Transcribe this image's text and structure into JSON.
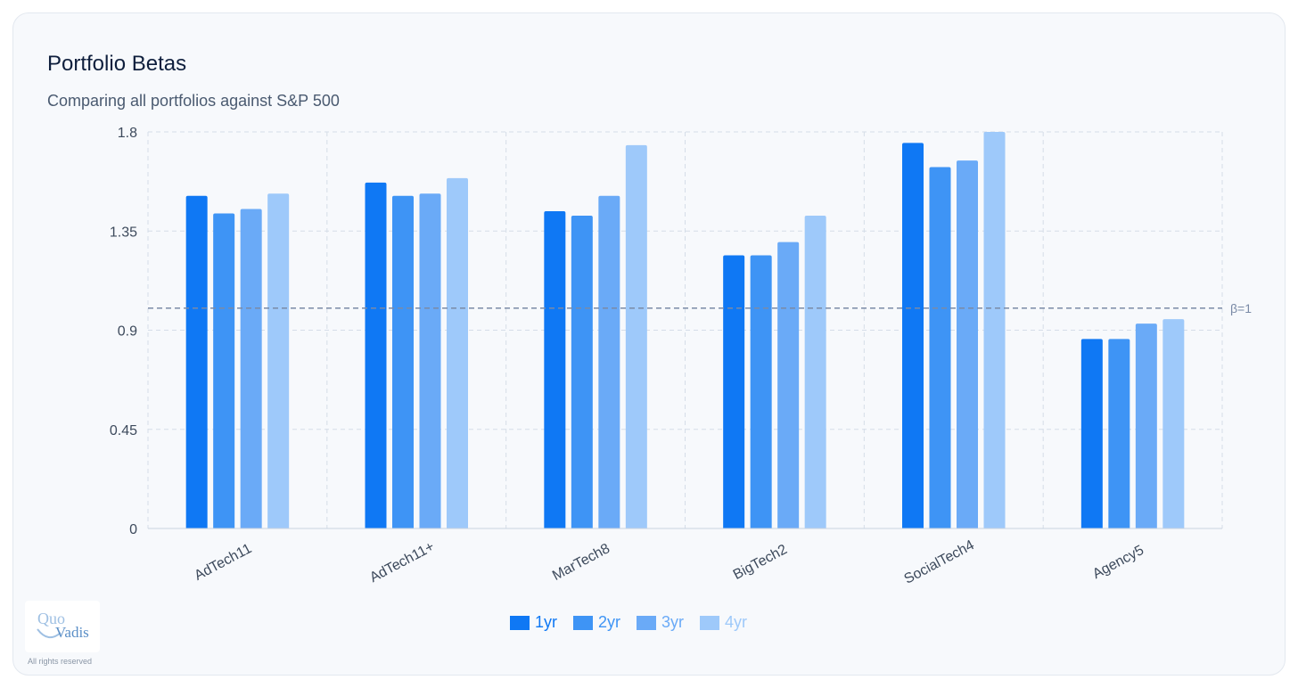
{
  "header": {
    "title": "Portfolio Betas",
    "subtitle": "Comparing all portfolios against S&P 500"
  },
  "footer": {
    "logo_line1": "Quo",
    "logo_line2": "Vadis",
    "rights": "All rights reserved"
  },
  "colors": {
    "1yr": "#0f78f4",
    "2yr": "#3e94f5",
    "3yr": "#6aaaf7",
    "4yr": "#9ec9fa",
    "reference": "#7a8aa6",
    "grid": "#d5dde8"
  },
  "chart_data": {
    "type": "bar",
    "categories": [
      "AdTech11",
      "AdTech11+",
      "MarTech8",
      "BigTech2",
      "SocialTech4",
      "Agency5"
    ],
    "series": [
      {
        "name": "1yr",
        "values": [
          1.51,
          1.57,
          1.44,
          1.24,
          1.75,
          0.86
        ]
      },
      {
        "name": "2yr",
        "values": [
          1.43,
          1.51,
          1.42,
          1.24,
          1.64,
          0.86
        ]
      },
      {
        "name": "3yr",
        "values": [
          1.45,
          1.52,
          1.51,
          1.3,
          1.67,
          0.93
        ]
      },
      {
        "name": "4yr",
        "values": [
          1.52,
          1.59,
          1.74,
          1.42,
          1.8,
          0.95
        ]
      }
    ],
    "ylim": [
      0,
      1.8
    ],
    "yticks": [
      "0",
      "0.45",
      "0.9",
      "1.35",
      "1.8"
    ],
    "ytick_values": [
      0,
      0.45,
      0.9,
      1.35,
      1.8
    ],
    "reference_line": {
      "value": 1,
      "label": "β=1"
    },
    "grid": true,
    "legend_position": "bottom-center",
    "xlabel": "",
    "ylabel": ""
  }
}
